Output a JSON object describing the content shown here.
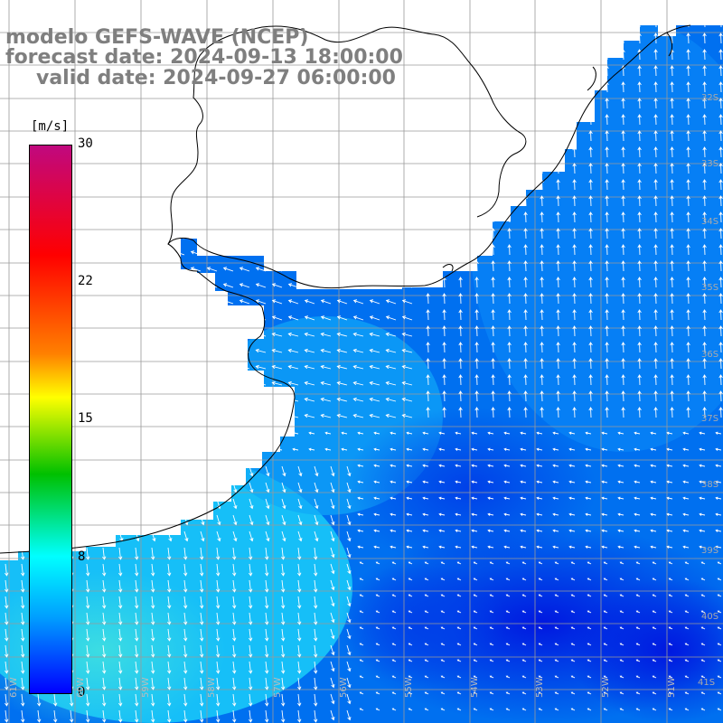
{
  "title": {
    "model": "modelo GEFS-WAVE (NCEP)",
    "forecast": "forecast date: 2024-09-13 18:00:00",
    "valid": "valid date: 2024-09-27 06:00:00"
  },
  "colorbar": {
    "unit": "[m/s]",
    "ticks": [
      "30",
      "22",
      "15",
      "8",
      "0"
    ],
    "tick_values": [
      30,
      22,
      15,
      8,
      0
    ],
    "colors": [
      "#c0087f",
      "#ff0000",
      "#ff8000",
      "#ffff00",
      "#00c000",
      "#00ffff",
      "#00a0ff",
      "#0000ff"
    ]
  },
  "longitude_labels": [
    "61W",
    "60W",
    "59W",
    "58W",
    "57W",
    "56W",
    "55W",
    "54W",
    "53W",
    "52W",
    "51W"
  ],
  "latitude_labels": [
    "32S",
    "33S",
    "34S",
    "35S",
    "36S",
    "37S",
    "38S",
    "39S",
    "40S",
    "41S"
  ],
  "colors": {
    "land": "#ffffff",
    "grid": "#9a9a9a",
    "coast": "#000000",
    "arrows": "#ffffff",
    "ocean_high": "#0a90ff",
    "ocean_mid": "#0070f0",
    "ocean_low": "#0030e0"
  }
}
